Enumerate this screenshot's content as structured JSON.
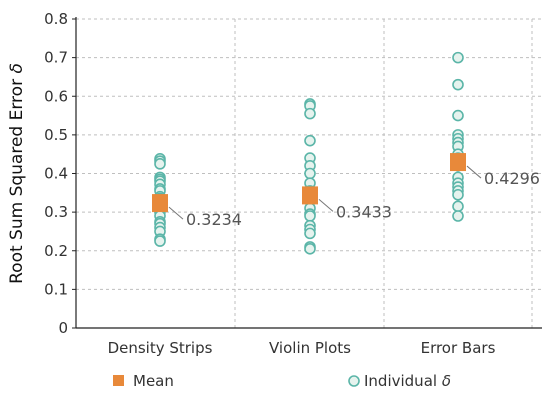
{
  "chart_data": {
    "type": "scatter",
    "ylabel": "Root Sum Squared Error",
    "ylabel_symbol": "δ",
    "ylim": [
      0,
      0.8
    ],
    "y_ticks": [
      "0",
      "0.1",
      "0.2",
      "0.3",
      "0.4",
      "0.5",
      "0.6",
      "0.7",
      "0.8"
    ],
    "categories": [
      "Density Strips",
      "Violin Plots",
      "Error Bars"
    ],
    "grid": true,
    "legend_position": "bottom",
    "legend": [
      {
        "label": "Mean",
        "marker": "square"
      },
      {
        "label": "Individual",
        "symbol": "δ",
        "marker": "circle"
      }
    ],
    "series": [
      {
        "name": "Individual δ",
        "points": [
          [
            0.438,
            0.432,
            0.425,
            0.39,
            0.385,
            0.38,
            0.372,
            0.36,
            0.355,
            0.34,
            0.335,
            0.32,
            0.31,
            0.3,
            0.29,
            0.275,
            0.27,
            0.26,
            0.25,
            0.23,
            0.225
          ],
          [
            0.58,
            0.575,
            0.555,
            0.485,
            0.44,
            0.42,
            0.4,
            0.375,
            0.355,
            0.345,
            0.33,
            0.31,
            0.295,
            0.29,
            0.265,
            0.255,
            0.245,
            0.21,
            0.205
          ],
          [
            0.7,
            0.63,
            0.55,
            0.5,
            0.49,
            0.48,
            0.47,
            0.45,
            0.44,
            0.43,
            0.42,
            0.39,
            0.375,
            0.365,
            0.355,
            0.345,
            0.315,
            0.29
          ]
        ]
      },
      {
        "name": "Mean",
        "values": [
          0.3234,
          0.3433,
          0.4296
        ],
        "labels": [
          "0.3234",
          "0.3433",
          "0.4296"
        ]
      }
    ]
  },
  "colors": {
    "mean": "#E8893A",
    "point_stroke": "#5BB5A8",
    "point_fill": "#E6F3EE",
    "grid": "#BFBFBF",
    "axis": "#222222",
    "leader": "#777777"
  }
}
